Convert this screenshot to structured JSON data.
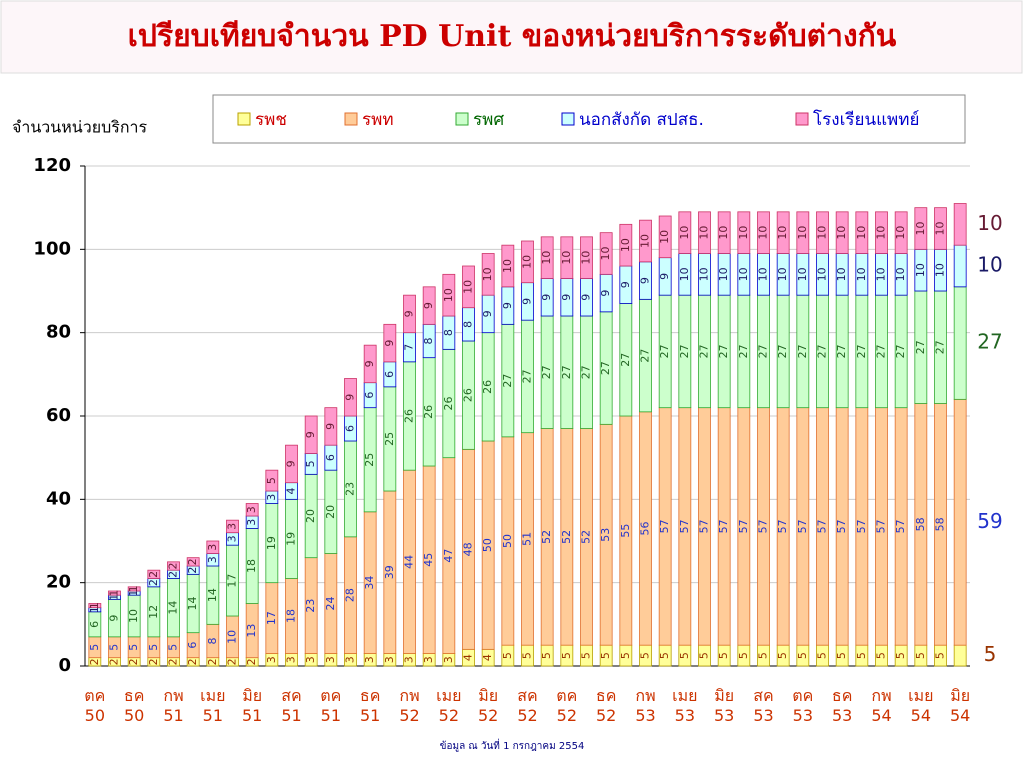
{
  "chart_data": {
    "type": "stacked_bar",
    "title": "เปรียบเทียบจำนวน PD Unit ของหน่วยบริการระดับต่างกัน",
    "y_label": "จำนวนหน่วยบริการ",
    "note": "ข้อมูล ณ วันที่ 1 กรกฎาคม  2554",
    "categories": [
      "ตค 50",
      null,
      "ธค 50",
      null,
      "กพ 51",
      null,
      "เมย 51",
      null,
      "มิย 51",
      null,
      "สค 51",
      null,
      "ตค 51",
      null,
      "ธค 51",
      null,
      "กพ 52",
      null,
      "เมย 52",
      null,
      "มิย 52",
      null,
      "สค 52",
      null,
      "ตค 52",
      null,
      "ธค 52",
      null,
      "กพ 53",
      null,
      "เมย 53",
      null,
      "มิย 53",
      null,
      "สค 53",
      null,
      "ตค 53",
      null,
      "ธค 53",
      null,
      "กพ 54",
      null,
      "เมย 54",
      null,
      "มิย 54"
    ],
    "ylim": [
      0,
      120
    ],
    "yticks": [
      0,
      20,
      40,
      60,
      80,
      100,
      120
    ],
    "grid": true,
    "series": [
      {
        "name": "รพช",
        "color": "#ffff99",
        "edge": "#b8a000",
        "text_color": "#cc0000",
        "label_color": "#993300",
        "values": [
          2,
          2,
          2,
          2,
          2,
          2,
          2,
          2,
          2,
          3,
          3,
          3,
          3,
          3,
          3,
          3,
          3,
          3,
          3,
          4,
          4,
          5,
          5,
          5,
          5,
          5,
          5,
          5,
          5,
          5,
          5,
          5,
          5,
          5,
          5,
          5,
          5,
          5,
          5,
          5,
          5,
          5,
          5,
          5,
          5
        ]
      },
      {
        "name": "รพท",
        "color": "#ffcc99",
        "edge": "#e07030",
        "text_color": "#cc0000",
        "label_color": "#2233cc",
        "values": [
          5,
          5,
          5,
          5,
          5,
          6,
          8,
          10,
          13,
          17,
          18,
          23,
          24,
          28,
          34,
          39,
          44,
          45,
          47,
          48,
          50,
          50,
          51,
          52,
          52,
          52,
          53,
          55,
          56,
          57,
          57,
          57,
          57,
          57,
          57,
          57,
          57,
          57,
          57,
          57,
          57,
          57,
          58,
          58,
          59
        ]
      },
      {
        "name": "รพศ",
        "color": "#ccffcc",
        "edge": "#33aa33",
        "text_color": "#006600",
        "label_color": "#226622",
        "values": [
          6,
          9,
          10,
          12,
          14,
          14,
          14,
          17,
          18,
          19,
          19,
          20,
          20,
          23,
          25,
          25,
          26,
          26,
          26,
          26,
          26,
          27,
          27,
          27,
          27,
          27,
          27,
          27,
          27,
          27,
          27,
          27,
          27,
          27,
          27,
          27,
          27,
          27,
          27,
          27,
          27,
          27,
          27,
          27,
          27
        ]
      },
      {
        "name": "นอกสังกัด สปสธ.",
        "color": "#ccffff",
        "edge": "#0000cc",
        "text_color": "#0000cc",
        "label_color": "#1a1a66",
        "values": [
          1,
          1,
          1,
          2,
          2,
          2,
          3,
          3,
          3,
          3,
          4,
          5,
          6,
          6,
          6,
          6,
          7,
          8,
          8,
          8,
          9,
          9,
          9,
          9,
          9,
          9,
          9,
          9,
          9,
          9,
          10,
          10,
          10,
          10,
          10,
          10,
          10,
          10,
          10,
          10,
          10,
          10,
          10,
          10,
          10
        ]
      },
      {
        "name": "โรงเรียนแพทย์",
        "color": "#ff99cc",
        "edge": "#cc3366",
        "text_color": "#0000cc",
        "label_color": "#661a33",
        "values": [
          1,
          1,
          1,
          2,
          2,
          2,
          3,
          3,
          3,
          5,
          9,
          9,
          9,
          9,
          9,
          9,
          9,
          9,
          10,
          10,
          10,
          10,
          10,
          10,
          10,
          10,
          10,
          10,
          10,
          10,
          10,
          10,
          10,
          10,
          10,
          10,
          10,
          10,
          10,
          10,
          10,
          10,
          10,
          10,
          10
        ]
      }
    ]
  }
}
